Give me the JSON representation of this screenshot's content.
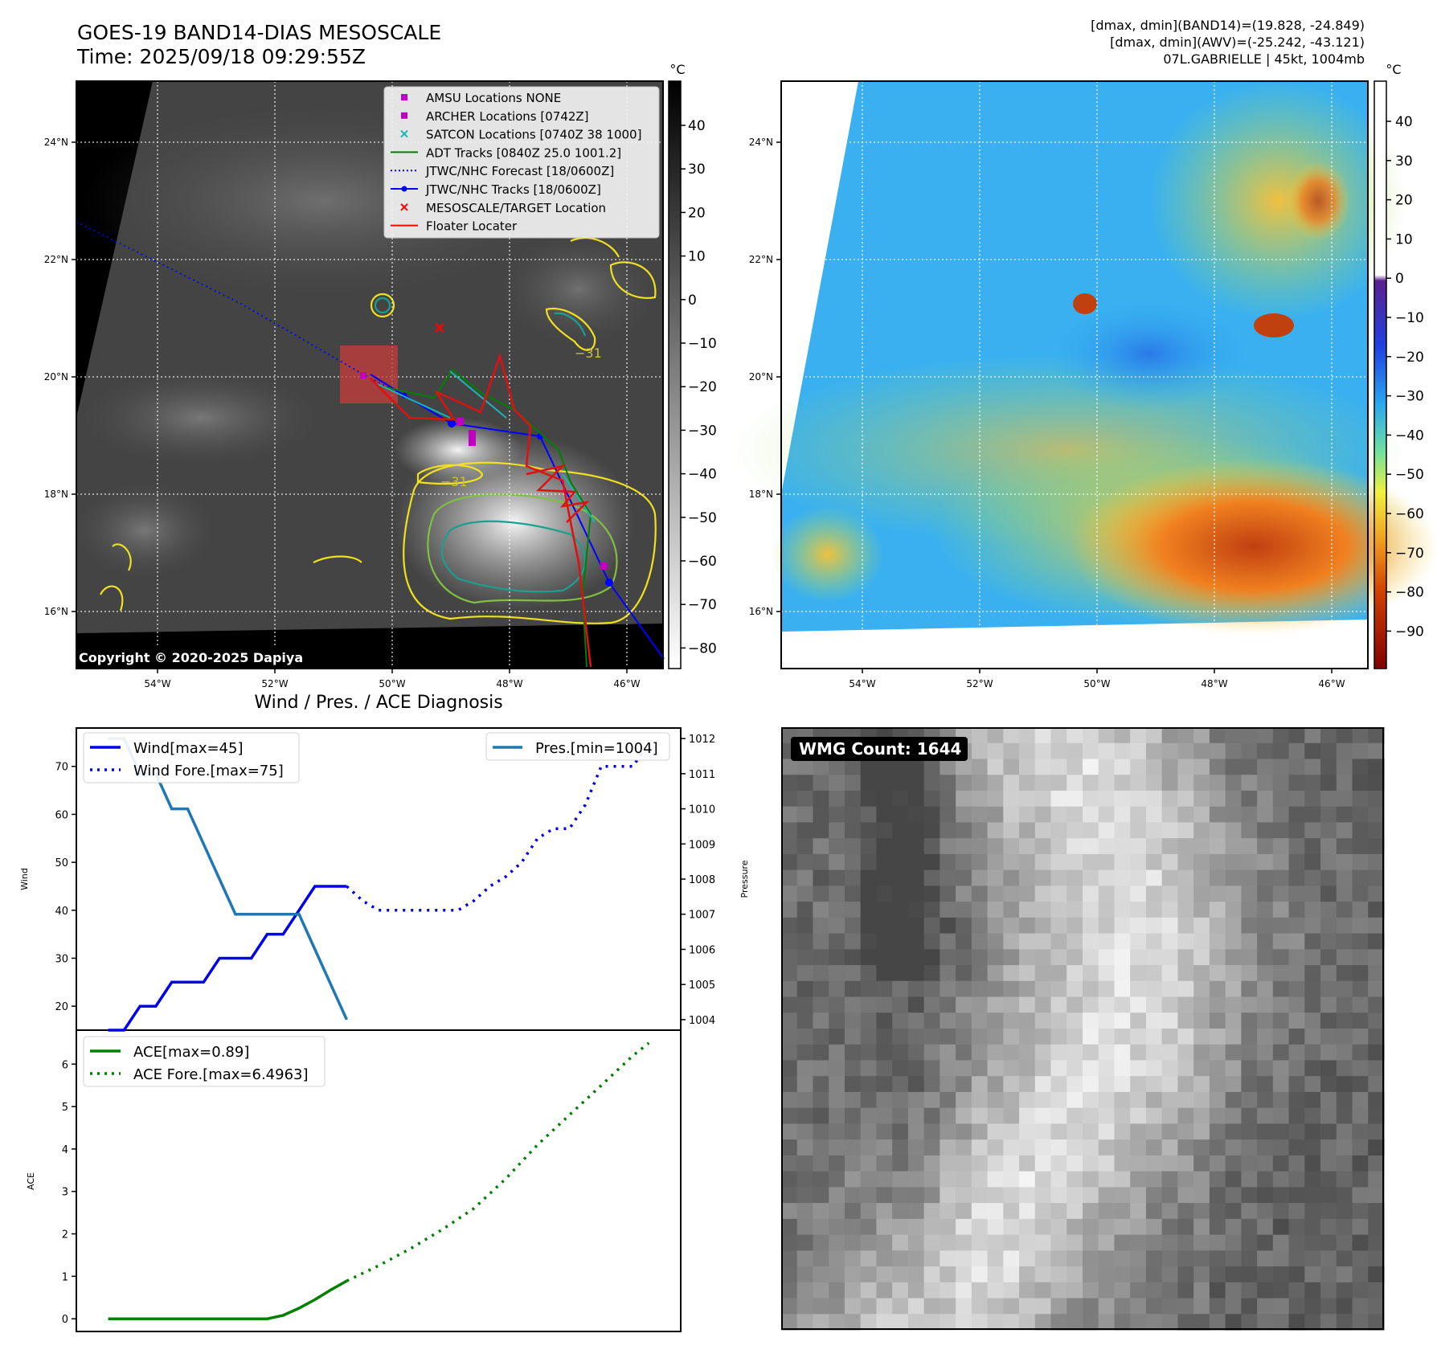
{
  "header": {
    "title_line1": "GOES-19 BAND14-DIAS MESOSCALE",
    "title_line2": "Time: 2025/09/18 09:29:55Z",
    "info_line1": "[dmax, dmin](BAND14)=(19.828, -24.849)",
    "info_line2": "[dmax, dmin](AWV)=(-25.242, -43.121)",
    "info_line3": "07L.GABRIELLE | 45kt, 1004mb"
  },
  "map": {
    "lon_ticks": [
      "54°W",
      "52°W",
      "50°W",
      "48°W",
      "46°W"
    ],
    "lat_ticks": [
      "24°N",
      "22°N",
      "20°N",
      "18°N",
      "16°N"
    ],
    "copyright": "Copyright © 2020-2025 Dapiya",
    "contour_label_1": "−31",
    "contour_label_2": "−31",
    "legend": [
      {
        "label": "AMSU Locations NONE",
        "color": "#c000c0",
        "marker": "square"
      },
      {
        "label": "ARCHER Locations [0742Z]",
        "color": "#c000c0",
        "marker": "square"
      },
      {
        "label": "SATCON Locations [0740Z 38 1000]",
        "color": "#1ab5b5",
        "marker": "x"
      },
      {
        "label": "ADT Tracks [0840Z 25.0 1001.2]",
        "color": "#008000",
        "marker": "line"
      },
      {
        "label": "JTWC/NHC Forecast [18/0600Z]",
        "color": "#0000ff",
        "marker": "dotted"
      },
      {
        "label": "JTWC/NHC Tracks [18/0600Z]",
        "color": "#0000ff",
        "marker": "line-dot"
      },
      {
        "label": "MESOSCALE/TARGET Location",
        "color": "#ff0000",
        "marker": "x"
      },
      {
        "label": "Floater Locater",
        "color": "#ff0000",
        "marker": "line"
      }
    ]
  },
  "colorbar_gray": {
    "unit": "°C",
    "ticks": [
      "40",
      "30",
      "20",
      "10",
      "0",
      "−10",
      "−20",
      "−30",
      "−40",
      "−50",
      "−60",
      "−70",
      "−80"
    ]
  },
  "colorbar_color": {
    "unit": "°C",
    "ticks": [
      "40",
      "30",
      "20",
      "10",
      "0",
      "−10",
      "−20",
      "−30",
      "−40",
      "−50",
      "−60",
      "−70",
      "−80",
      "−90"
    ]
  },
  "wmg": {
    "label": "WMG Count: 1644"
  },
  "diag": {
    "title": "Wind / Pres. / ACE Diagnosis",
    "wind_ylabel": "Wind",
    "pres_ylabel": "Pressure",
    "ace_ylabel": "ACE",
    "wind_ticks": [
      "70",
      "60",
      "50",
      "40",
      "30",
      "20"
    ],
    "pres_ticks": [
      "1012",
      "1011",
      "1010",
      "1009",
      "1008",
      "1007",
      "1006",
      "1005",
      "1004"
    ],
    "ace_ticks": [
      "6",
      "5",
      "4",
      "3",
      "2",
      "1",
      "0"
    ],
    "legend_wind": "Wind[max=45]",
    "legend_wind_fore": "Wind Fore.[max=75]",
    "legend_pres": "Pres.[min=1004]",
    "legend_ace": "ACE[max=0.89]",
    "legend_ace_fore": "ACE Fore.[max=6.4963]"
  },
  "chart_data": {
    "type": "line",
    "title": "Wind / Pres. / ACE Diagnosis",
    "colors": {
      "wind": "#0000ee",
      "pressure": "#1f77b4",
      "ace": "#008000"
    },
    "wind": {
      "ylabel": "Wind",
      "ylim": [
        15,
        78
      ],
      "series": [
        {
          "name": "Wind[max=45]",
          "style": "solid",
          "x": [
            0,
            1,
            2,
            3,
            4,
            5,
            6,
            7,
            8,
            9,
            10,
            11,
            12,
            13,
            14,
            15
          ],
          "values": [
            15,
            15,
            20,
            20,
            25,
            25,
            25,
            30,
            30,
            30,
            35,
            35,
            40,
            45,
            45,
            45
          ]
        },
        {
          "name": "Wind Fore.[max=75]",
          "style": "dotted",
          "x": [
            15,
            16,
            17,
            18,
            19,
            20,
            21,
            22,
            23,
            24,
            25,
            26,
            27,
            28,
            29,
            30,
            31,
            32,
            33,
            34
          ],
          "values": [
            45,
            42,
            40,
            40,
            40,
            40,
            40,
            40,
            42,
            45,
            47,
            50,
            55,
            57,
            57,
            62,
            70,
            70,
            70,
            75
          ]
        }
      ]
    },
    "pressure": {
      "ylabel": "Pressure",
      "ylim": [
        1003.7,
        1012.3
      ],
      "series": [
        {
          "name": "Pres.[min=1004]",
          "x": [
            0,
            1,
            2,
            3,
            4,
            5,
            6,
            7,
            8,
            9,
            10,
            11,
            12,
            13,
            14,
            15
          ],
          "values": [
            1012,
            1012,
            1011,
            1011,
            1010,
            1010,
            1009,
            1008,
            1007,
            1007,
            1007,
            1007,
            1007,
            1006,
            1005,
            1004
          ]
        }
      ]
    },
    "ace": {
      "ylabel": "ACE",
      "ylim": [
        -0.3,
        6.8
      ],
      "series": [
        {
          "name": "ACE[max=0.89]",
          "style": "solid",
          "x": [
            0,
            2,
            4,
            6,
            8,
            10,
            11,
            12,
            13,
            14,
            15
          ],
          "values": [
            0,
            0,
            0,
            0,
            0,
            0,
            0.08,
            0.25,
            0.45,
            0.68,
            0.89
          ]
        },
        {
          "name": "ACE Fore.[max=6.4963]",
          "style": "dotted",
          "x": [
            15,
            17,
            19,
            21,
            23,
            25,
            27,
            29,
            31,
            33,
            34
          ],
          "values": [
            0.89,
            1.25,
            1.65,
            2.1,
            2.6,
            3.3,
            4.1,
            4.8,
            5.5,
            6.2,
            6.4963
          ]
        }
      ]
    }
  }
}
